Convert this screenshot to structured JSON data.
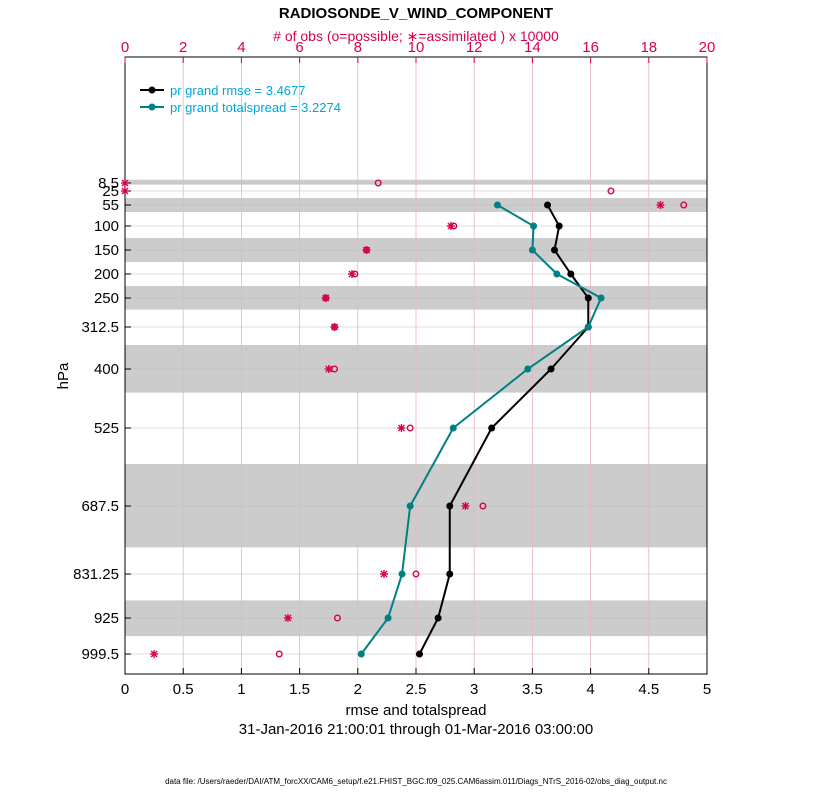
{
  "chart_data": {
    "type": "line",
    "title": "RADIOSONDE_V_WIND_COMPONENT",
    "top_axis_label": "# of obs (o=possible; ∗=assimilated ) x 10000",
    "xlabel": "rmse and totalspread",
    "ylabel": "hPa",
    "date_range": "31-Jan-2016 21:00:01 through 01-Mar-2016 03:00:00",
    "footnote": "data file: /Users/raeder/DAI/ATM_forcXX/CAM6_setup/f.e21.FHIST_BGC.f09_025.CAM6assim.011/Diags_NTrS_2016-02/obs_diag_output.nc",
    "xlim": [
      0,
      5
    ],
    "xticks": [
      "0",
      "0.5",
      "1",
      "1.5",
      "2",
      "2.5",
      "3",
      "3.5",
      "4",
      "4.5",
      "5"
    ],
    "top_xlim": [
      0,
      20
    ],
    "top_xticks": [
      "0",
      "2",
      "4",
      "6",
      "8",
      "10",
      "12",
      "14",
      "16",
      "18",
      "20"
    ],
    "levels": [
      8.5,
      25,
      55,
      100,
      150,
      200,
      250,
      312.5,
      400,
      525,
      687.5,
      831.25,
      925,
      999.5
    ],
    "level_labels": [
      "8.5",
      "25",
      "55",
      "100",
      "150",
      "200",
      "250",
      "312.5",
      "400",
      "525",
      "687.5",
      "831.25",
      "925",
      "999.5"
    ],
    "shaded_bands_hPa": [
      [
        5,
        12
      ],
      [
        40,
        70
      ],
      [
        125,
        175
      ],
      [
        225,
        275
      ],
      [
        350,
        450
      ],
      [
        600,
        775
      ],
      [
        887.5,
        962.5
      ]
    ],
    "series": [
      {
        "name": "rmse",
        "legend": "pr grand rmse = 3.4677",
        "color": "#000000",
        "levels": [
          55,
          100,
          150,
          200,
          250,
          312.5,
          400,
          525,
          687.5,
          831.25,
          925,
          999.5
        ],
        "values": [
          3.63,
          3.73,
          3.69,
          3.83,
          3.98,
          3.98,
          3.66,
          3.15,
          2.79,
          2.79,
          2.69,
          2.53
        ]
      },
      {
        "name": "totalspread",
        "legend": "pr grand totalspread = 3.2274",
        "color": "#008080",
        "levels": [
          55,
          100,
          150,
          200,
          250,
          312.5,
          400,
          525,
          687.5,
          831.25,
          925,
          999.5
        ],
        "values": [
          3.2,
          3.51,
          3.5,
          3.71,
          4.09,
          3.98,
          3.46,
          2.82,
          2.45,
          2.38,
          2.26,
          2.03
        ]
      }
    ],
    "obs_possible": {
      "levels": [
        8.5,
        25,
        55,
        100,
        150,
        200,
        250,
        312.5,
        400,
        525,
        687.5,
        831.25,
        925,
        999.5
      ],
      "values": [
        8.7,
        16.7,
        19.2,
        11.3,
        8.3,
        7.9,
        6.9,
        7.2,
        7.2,
        9.8,
        12.3,
        10.0,
        7.3,
        5.3
      ]
    },
    "obs_assimilated": {
      "levels": [
        8.5,
        25,
        55,
        100,
        150,
        200,
        250,
        312.5,
        400,
        525,
        687.5,
        831.25,
        925,
        999.5
      ],
      "values": [
        0,
        0,
        18.4,
        11.2,
        8.3,
        7.8,
        6.9,
        7.2,
        7.0,
        9.5,
        11.7,
        8.9,
        5.6,
        1.0
      ]
    }
  },
  "colors": {
    "obs": "#d6004f",
    "legend_text": "#00a7d8",
    "band": "#cccccc",
    "grid": "#e8b3c6"
  }
}
